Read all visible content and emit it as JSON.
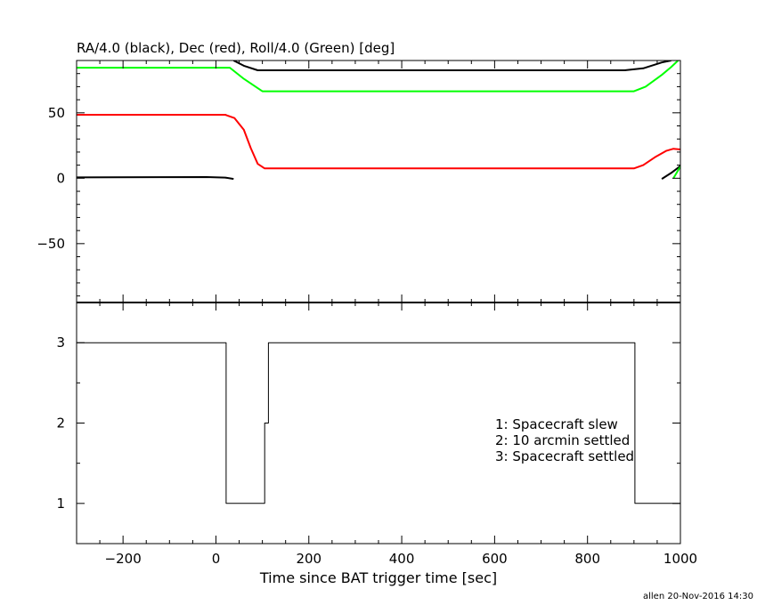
{
  "footer": "allen 20-Nov-2016 14:30",
  "chart_data": [
    {
      "type": "line",
      "title": "RA/4.0 (black), Dec (red), Roll/4.0 (Green) [deg]",
      "xlim": [
        -300,
        1000
      ],
      "ylim": [
        -95,
        90
      ],
      "x_ticks": [
        -200,
        0,
        200,
        400,
        600,
        800,
        1000
      ],
      "x_tick_labels": [
        "",
        "",
        "",
        "",
        "",
        "",
        ""
      ],
      "y_ticks": [
        -50,
        0,
        50
      ],
      "y_tick_labels": [
        "−50",
        "0",
        "50"
      ],
      "series": [
        {
          "color": "#000000",
          "points": [
            [
              -300,
              0.6
            ],
            [
              -20,
              0.9
            ],
            [
              20,
              0.5
            ],
            [
              38,
              -0.5
            ]
          ]
        },
        {
          "color": "#000000",
          "points": [
            [
              38,
              90
            ],
            [
              60,
              86
            ],
            [
              90,
              82.5
            ],
            [
              150,
              82.5
            ],
            [
              880,
              82.5
            ],
            [
              920,
              84
            ],
            [
              960,
              88.5
            ],
            [
              980,
              90
            ]
          ]
        },
        {
          "color": "#000000",
          "points": [
            [
              960,
              -0.5
            ],
            [
              980,
              4
            ],
            [
              995,
              8
            ],
            [
              1000,
              9.5
            ]
          ]
        },
        {
          "color": "#ff0000",
          "points": [
            [
              -300,
              48.5
            ],
            [
              20,
              48.5
            ],
            [
              40,
              46
            ],
            [
              60,
              37
            ],
            [
              75,
              23
            ],
            [
              90,
              11
            ],
            [
              105,
              7.5
            ],
            [
              150,
              7.5
            ],
            [
              900,
              7.5
            ],
            [
              920,
              10
            ],
            [
              945,
              16
            ],
            [
              970,
              21
            ],
            [
              985,
              22.5
            ],
            [
              1000,
              22
            ]
          ]
        },
        {
          "color": "#00ff00",
          "points": [
            [
              -300,
              84.5
            ],
            [
              30,
              84.5
            ],
            [
              60,
              76
            ],
            [
              100,
              66.5
            ],
            [
              150,
              66.5
            ],
            [
              900,
              66.5
            ],
            [
              925,
              70
            ],
            [
              960,
              79
            ],
            [
              980,
              85
            ],
            [
              995,
              90
            ]
          ]
        },
        {
          "color": "#00ff00",
          "points": [
            [
              985,
              0
            ],
            [
              1000,
              9
            ]
          ]
        }
      ]
    },
    {
      "type": "line",
      "xlabel": "Time since BAT trigger time [sec]",
      "xlim": [
        -300,
        1000
      ],
      "ylim": [
        0.5,
        3.5
      ],
      "x_ticks": [
        -200,
        0,
        200,
        400,
        600,
        800,
        1000
      ],
      "x_tick_labels": [
        "−200",
        "0",
        "200",
        "400",
        "600",
        "800",
        "1000"
      ],
      "y_ticks": [
        1,
        2,
        3
      ],
      "y_tick_labels": [
        "1",
        "2",
        "3"
      ],
      "legend": [
        "1: Spacecraft slew",
        "2: 10 arcmin settled",
        "3: Spacecraft settled"
      ],
      "legend_position": "right",
      "series": [
        {
          "color": "#000000",
          "step": true,
          "points": [
            [
              -300,
              3
            ],
            [
              22,
              3
            ],
            [
              22,
              1
            ],
            [
              105,
              1
            ],
            [
              105,
              2
            ],
            [
              113,
              2
            ],
            [
              113,
              3
            ],
            [
              902,
              3
            ],
            [
              902,
              1
            ],
            [
              1000,
              1
            ]
          ]
        }
      ]
    }
  ]
}
